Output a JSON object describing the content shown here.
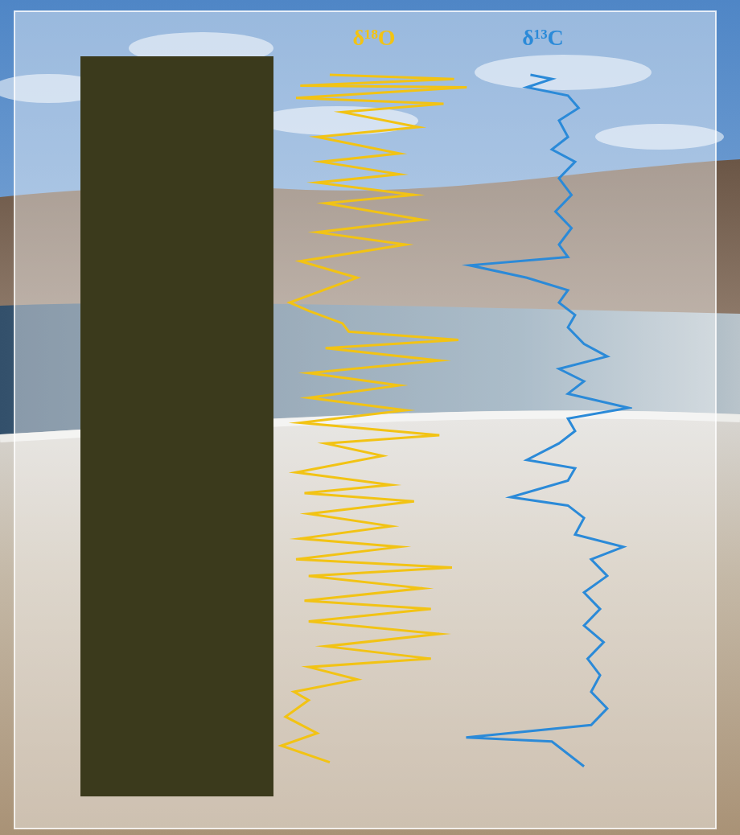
{
  "chart_data": [
    {
      "type": "line",
      "title": "δ¹⁸O",
      "color": "#f2c314",
      "orientation": "horizontal",
      "grid": false,
      "tick_labels": false,
      "xlim": [
        0,
        860
      ],
      "ylim": [
        0,
        100
      ],
      "x": [
        15,
        20,
        28,
        30,
        43,
        50,
        60,
        78,
        90,
        110,
        120,
        135,
        145,
        160,
        170,
        190,
        205,
        220,
        240,
        260,
        290,
        300,
        315,
        325,
        335,
        345,
        360,
        375,
        390,
        405,
        420,
        435,
        450,
        460,
        475,
        495,
        510,
        520,
        530,
        545,
        560,
        575,
        585,
        600,
        610,
        620,
        635,
        650,
        660,
        675,
        690,
        705,
        720,
        730,
        745,
        760,
        770,
        790,
        810,
        825,
        845
      ],
      "values": [
        29,
        88,
        15,
        94,
        13,
        83,
        35,
        71,
        23,
        62,
        25,
        62,
        23,
        69,
        27,
        73,
        23,
        65,
        15,
        42,
        10,
        19,
        35,
        38,
        90,
        27,
        81,
        19,
        62,
        19,
        65,
        15,
        81,
        27,
        54,
        13,
        58,
        17,
        69,
        19,
        58,
        15,
        62,
        13,
        87,
        19,
        73,
        17,
        77,
        19,
        81,
        27,
        77,
        19,
        42,
        12,
        19,
        8,
        23,
        6,
        29
      ]
    },
    {
      "type": "line",
      "title": "δ¹³C",
      "color": "#2b8ad8",
      "orientation": "horizontal",
      "grid": false,
      "tick_labels": false,
      "xlim": [
        0,
        860
      ],
      "ylim": [
        0,
        100
      ],
      "x": [
        15,
        20,
        30,
        40,
        55,
        70,
        90,
        105,
        120,
        140,
        160,
        180,
        200,
        220,
        235,
        245,
        260,
        275,
        290,
        305,
        320,
        340,
        355,
        370,
        385,
        400,
        417,
        430,
        445,
        460,
        480,
        490,
        505,
        525,
        535,
        550,
        570,
        585,
        600,
        620,
        640,
        660,
        680,
        700,
        720,
        740,
        760,
        780,
        800,
        815,
        820,
        835,
        850
      ],
      "values": [
        43,
        55,
        41,
        64,
        70,
        59,
        64,
        55,
        68,
        59,
        66,
        57,
        66,
        59,
        64,
        9,
        41,
        64,
        59,
        68,
        64,
        73,
        86,
        59,
        73,
        64,
        98,
        64,
        68,
        59,
        41,
        68,
        64,
        32,
        64,
        73,
        68,
        95,
        77,
        86,
        73,
        82,
        73,
        84,
        75,
        82,
        77,
        86,
        77,
        7,
        55,
        64,
        73
      ]
    }
  ]
}
